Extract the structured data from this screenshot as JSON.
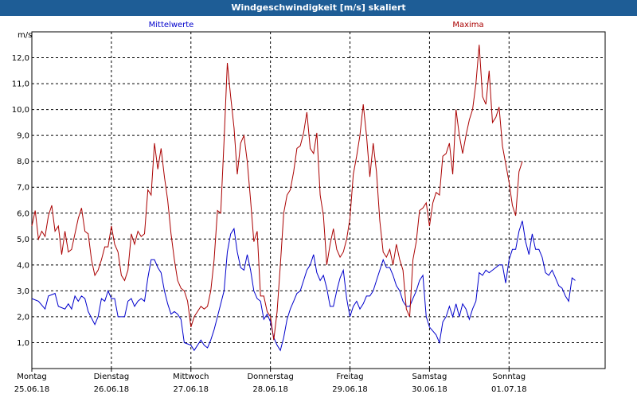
{
  "window": {
    "title": "Windgeschwindigkeit [m/s] skaliert"
  },
  "chart_data": {
    "type": "line",
    "title": "Windgeschwindigkeit [m/s] skaliert",
    "ylabel": "m/s",
    "xlabel": "",
    "ylim": [
      0,
      13
    ],
    "xlim": [
      0,
      173
    ],
    "grid": true,
    "legend_placement": "top",
    "y_ticks": [
      "1,0",
      "2,0",
      "3,0",
      "4,0",
      "5,0",
      "6,0",
      "7,0",
      "8,0",
      "9,0",
      "10,0",
      "11,0",
      "12,0"
    ],
    "x_ticks": [
      {
        "x": 0,
        "day": "Montag",
        "date": "25.06.18"
      },
      {
        "x": 24,
        "day": "Dienstag",
        "date": "26.06.18"
      },
      {
        "x": 48,
        "day": "Mittwoch",
        "date": "27.06.18"
      },
      {
        "x": 72,
        "day": "Donnerstag",
        "date": "28.06.18"
      },
      {
        "x": 96,
        "day": "Freitag",
        "date": "29.06.18"
      },
      {
        "x": 120,
        "day": "Samstag",
        "date": "30.06.18"
      },
      {
        "x": 144,
        "day": "Sonntag",
        "date": "01.07.18"
      }
    ],
    "series": [
      {
        "name": "Mittelwerte",
        "color": "#0000cc",
        "points": [
          [
            0,
            2.7
          ],
          [
            2,
            2.6
          ],
          [
            4,
            2.3
          ],
          [
            5,
            2.8
          ],
          [
            7,
            2.9
          ],
          [
            8,
            2.4
          ],
          [
            10,
            2.3
          ],
          [
            11,
            2.5
          ],
          [
            12,
            2.3
          ],
          [
            13,
            2.8
          ],
          [
            14,
            2.6
          ],
          [
            15,
            2.8
          ],
          [
            16,
            2.7
          ],
          [
            17,
            2.2
          ],
          [
            19,
            1.7
          ],
          [
            20,
            2.0
          ],
          [
            21,
            2.7
          ],
          [
            22,
            2.6
          ],
          [
            23,
            3.0
          ],
          [
            24,
            2.7
          ],
          [
            25,
            2.7
          ],
          [
            26,
            2.0
          ],
          [
            28,
            2.0
          ],
          [
            29,
            2.6
          ],
          [
            30,
            2.7
          ],
          [
            31,
            2.4
          ],
          [
            32,
            2.6
          ],
          [
            33,
            2.7
          ],
          [
            34,
            2.6
          ],
          [
            35,
            3.5
          ],
          [
            36,
            4.2
          ],
          [
            37,
            4.2
          ],
          [
            38,
            3.9
          ],
          [
            39,
            3.7
          ],
          [
            40,
            3.0
          ],
          [
            41,
            2.5
          ],
          [
            42,
            2.1
          ],
          [
            43,
            2.2
          ],
          [
            44,
            2.1
          ],
          [
            45,
            1.9
          ],
          [
            46,
            1.0
          ],
          [
            48,
            0.9
          ],
          [
            49,
            0.7
          ],
          [
            50,
            0.9
          ],
          [
            51,
            1.1
          ],
          [
            52,
            0.9
          ],
          [
            53,
            0.8
          ],
          [
            54,
            1.1
          ],
          [
            55,
            1.5
          ],
          [
            56,
            2.0
          ],
          [
            58,
            3.0
          ],
          [
            59,
            4.5
          ],
          [
            60,
            5.2
          ],
          [
            61,
            5.4
          ],
          [
            62,
            4.5
          ],
          [
            63,
            3.9
          ],
          [
            64,
            3.8
          ],
          [
            65,
            4.4
          ],
          [
            66,
            3.8
          ],
          [
            67,
            3.0
          ],
          [
            68,
            2.7
          ],
          [
            69,
            2.6
          ],
          [
            70,
            1.9
          ],
          [
            71,
            2.1
          ],
          [
            72,
            1.8
          ],
          [
            73,
            1.2
          ],
          [
            74,
            0.9
          ],
          [
            75,
            0.7
          ],
          [
            76,
            1.2
          ],
          [
            77,
            1.9
          ],
          [
            78,
            2.3
          ],
          [
            79,
            2.6
          ],
          [
            80,
            2.9
          ],
          [
            81,
            3.0
          ],
          [
            82,
            3.4
          ],
          [
            83,
            3.8
          ],
          [
            84,
            4.0
          ],
          [
            85,
            4.4
          ],
          [
            86,
            3.7
          ],
          [
            87,
            3.4
          ],
          [
            88,
            3.6
          ],
          [
            89,
            3.1
          ],
          [
            90,
            2.4
          ],
          [
            91,
            2.4
          ],
          [
            92,
            3.0
          ],
          [
            93,
            3.5
          ],
          [
            94,
            3.8
          ],
          [
            95,
            2.7
          ],
          [
            96,
            2.0
          ],
          [
            97,
            2.4
          ],
          [
            98,
            2.6
          ],
          [
            99,
            2.3
          ],
          [
            100,
            2.5
          ],
          [
            101,
            2.8
          ],
          [
            102,
            2.8
          ],
          [
            103,
            3.0
          ],
          [
            104,
            3.4
          ],
          [
            105,
            3.8
          ],
          [
            106,
            4.2
          ],
          [
            107,
            3.9
          ],
          [
            108,
            3.9
          ],
          [
            109,
            3.6
          ],
          [
            110,
            3.2
          ],
          [
            111,
            3.0
          ],
          [
            112,
            2.6
          ],
          [
            113,
            2.4
          ],
          [
            114,
            2.4
          ],
          [
            115,
            2.7
          ],
          [
            116,
            3.0
          ],
          [
            117,
            3.4
          ],
          [
            118,
            3.6
          ],
          [
            119,
            2.0
          ],
          [
            120,
            1.6
          ],
          [
            122,
            1.3
          ],
          [
            123,
            1.0
          ],
          [
            124,
            1.8
          ],
          [
            125,
            2.0
          ],
          [
            126,
            2.4
          ],
          [
            127,
            2.0
          ],
          [
            128,
            2.5
          ],
          [
            129,
            2.0
          ],
          [
            130,
            2.5
          ],
          [
            131,
            2.3
          ],
          [
            132,
            1.9
          ],
          [
            133,
            2.3
          ],
          [
            134,
            2.6
          ],
          [
            135,
            3.7
          ],
          [
            136,
            3.6
          ],
          [
            137,
            3.8
          ],
          [
            138,
            3.7
          ],
          [
            139,
            3.8
          ],
          [
            140,
            3.9
          ],
          [
            141,
            4.0
          ],
          [
            142,
            4.0
          ],
          [
            143,
            3.3
          ],
          [
            144,
            4.2
          ],
          [
            145,
            4.6
          ],
          [
            146,
            4.6
          ],
          [
            147,
            5.3
          ],
          [
            148,
            5.7
          ],
          [
            149,
            4.9
          ],
          [
            150,
            4.4
          ],
          [
            151,
            5.2
          ],
          [
            152,
            4.6
          ],
          [
            153,
            4.6
          ],
          [
            154,
            4.3
          ],
          [
            155,
            3.7
          ],
          [
            156,
            3.6
          ],
          [
            157,
            3.8
          ],
          [
            158,
            3.5
          ],
          [
            159,
            3.2
          ],
          [
            160,
            3.1
          ],
          [
            161,
            2.8
          ],
          [
            162,
            2.6
          ],
          [
            163,
            3.5
          ],
          [
            164,
            3.4
          ]
        ]
      },
      {
        "name": "Maxima",
        "color": "#aa0000",
        "points": [
          [
            0,
            5.5
          ],
          [
            1,
            6.1
          ],
          [
            2,
            5.0
          ],
          [
            3,
            5.3
          ],
          [
            4,
            5.1
          ],
          [
            5,
            5.9
          ],
          [
            6,
            6.3
          ],
          [
            7,
            5.3
          ],
          [
            8,
            5.5
          ],
          [
            9,
            4.4
          ],
          [
            10,
            5.3
          ],
          [
            11,
            4.5
          ],
          [
            12,
            4.6
          ],
          [
            13,
            5.2
          ],
          [
            14,
            5.8
          ],
          [
            15,
            6.2
          ],
          [
            16,
            5.3
          ],
          [
            17,
            5.2
          ],
          [
            18,
            4.2
          ],
          [
            19,
            3.6
          ],
          [
            20,
            3.8
          ],
          [
            21,
            4.2
          ],
          [
            22,
            4.7
          ],
          [
            23,
            4.7
          ],
          [
            24,
            5.5
          ],
          [
            25,
            4.8
          ],
          [
            26,
            4.5
          ],
          [
            27,
            3.6
          ],
          [
            28,
            3.4
          ],
          [
            29,
            3.8
          ],
          [
            30,
            5.2
          ],
          [
            31,
            4.8
          ],
          [
            32,
            5.3
          ],
          [
            33,
            5.1
          ],
          [
            34,
            5.2
          ],
          [
            35,
            6.9
          ],
          [
            36,
            6.7
          ],
          [
            37,
            8.7
          ],
          [
            38,
            7.7
          ],
          [
            39,
            8.5
          ],
          [
            40,
            7.4
          ],
          [
            41,
            6.5
          ],
          [
            42,
            5.2
          ],
          [
            43,
            4.2
          ],
          [
            44,
            3.4
          ],
          [
            45,
            3.1
          ],
          [
            46,
            3.0
          ],
          [
            47,
            2.6
          ],
          [
            48,
            1.6
          ],
          [
            49,
            2.0
          ],
          [
            50,
            2.2
          ],
          [
            51,
            2.4
          ],
          [
            52,
            2.3
          ],
          [
            53,
            2.4
          ],
          [
            54,
            3.0
          ],
          [
            55,
            4.2
          ],
          [
            56,
            6.1
          ],
          [
            57,
            6.0
          ],
          [
            58,
            8.8
          ],
          [
            59,
            11.8
          ],
          [
            60,
            10.5
          ],
          [
            61,
            9.3
          ],
          [
            62,
            7.5
          ],
          [
            63,
            8.7
          ],
          [
            64,
            9.0
          ],
          [
            65,
            8.0
          ],
          [
            66,
            6.5
          ],
          [
            67,
            4.9
          ],
          [
            68,
            5.3
          ],
          [
            69,
            2.8
          ],
          [
            70,
            2.8
          ],
          [
            71,
            2.2
          ],
          [
            72,
            2.0
          ],
          [
            73,
            1.1
          ],
          [
            74,
            2.2
          ],
          [
            75,
            4.0
          ],
          [
            76,
            6.0
          ],
          [
            77,
            6.7
          ],
          [
            78,
            6.9
          ],
          [
            79,
            7.6
          ],
          [
            80,
            8.5
          ],
          [
            81,
            8.6
          ],
          [
            82,
            9.1
          ],
          [
            83,
            9.9
          ],
          [
            84,
            8.5
          ],
          [
            85,
            8.3
          ],
          [
            86,
            9.1
          ],
          [
            87,
            6.7
          ],
          [
            88,
            5.9
          ],
          [
            89,
            4.0
          ],
          [
            90,
            4.8
          ],
          [
            91,
            5.4
          ],
          [
            92,
            4.6
          ],
          [
            93,
            4.3
          ],
          [
            94,
            4.5
          ],
          [
            95,
            5.0
          ],
          [
            96,
            5.8
          ],
          [
            97,
            7.5
          ],
          [
            98,
            8.2
          ],
          [
            99,
            9.0
          ],
          [
            100,
            10.2
          ],
          [
            101,
            9.0
          ],
          [
            102,
            7.4
          ],
          [
            103,
            8.7
          ],
          [
            104,
            7.6
          ],
          [
            105,
            5.7
          ],
          [
            106,
            4.5
          ],
          [
            107,
            4.3
          ],
          [
            108,
            4.6
          ],
          [
            109,
            4.0
          ],
          [
            110,
            4.8
          ],
          [
            111,
            4.2
          ],
          [
            112,
            3.8
          ],
          [
            113,
            2.3
          ],
          [
            114,
            2.0
          ],
          [
            115,
            4.2
          ],
          [
            116,
            4.9
          ],
          [
            117,
            6.1
          ],
          [
            118,
            6.2
          ],
          [
            119,
            6.4
          ],
          [
            120,
            5.5
          ],
          [
            121,
            6.4
          ],
          [
            122,
            6.8
          ],
          [
            123,
            6.7
          ],
          [
            124,
            8.2
          ],
          [
            125,
            8.3
          ],
          [
            126,
            8.7
          ],
          [
            127,
            7.5
          ],
          [
            128,
            10.0
          ],
          [
            129,
            9.0
          ],
          [
            130,
            8.3
          ],
          [
            131,
            9.0
          ],
          [
            132,
            9.6
          ],
          [
            133,
            10.0
          ],
          [
            134,
            11.0
          ],
          [
            135,
            12.5
          ],
          [
            136,
            10.5
          ],
          [
            137,
            10.2
          ],
          [
            138,
            11.5
          ],
          [
            139,
            9.5
          ],
          [
            140,
            9.7
          ],
          [
            141,
            10.1
          ],
          [
            142,
            8.6
          ],
          [
            143,
            7.9
          ],
          [
            144,
            7.2
          ],
          [
            145,
            6.3
          ],
          [
            146,
            5.9
          ],
          [
            147,
            7.6
          ],
          [
            148,
            8.0
          ]
        ]
      }
    ]
  }
}
